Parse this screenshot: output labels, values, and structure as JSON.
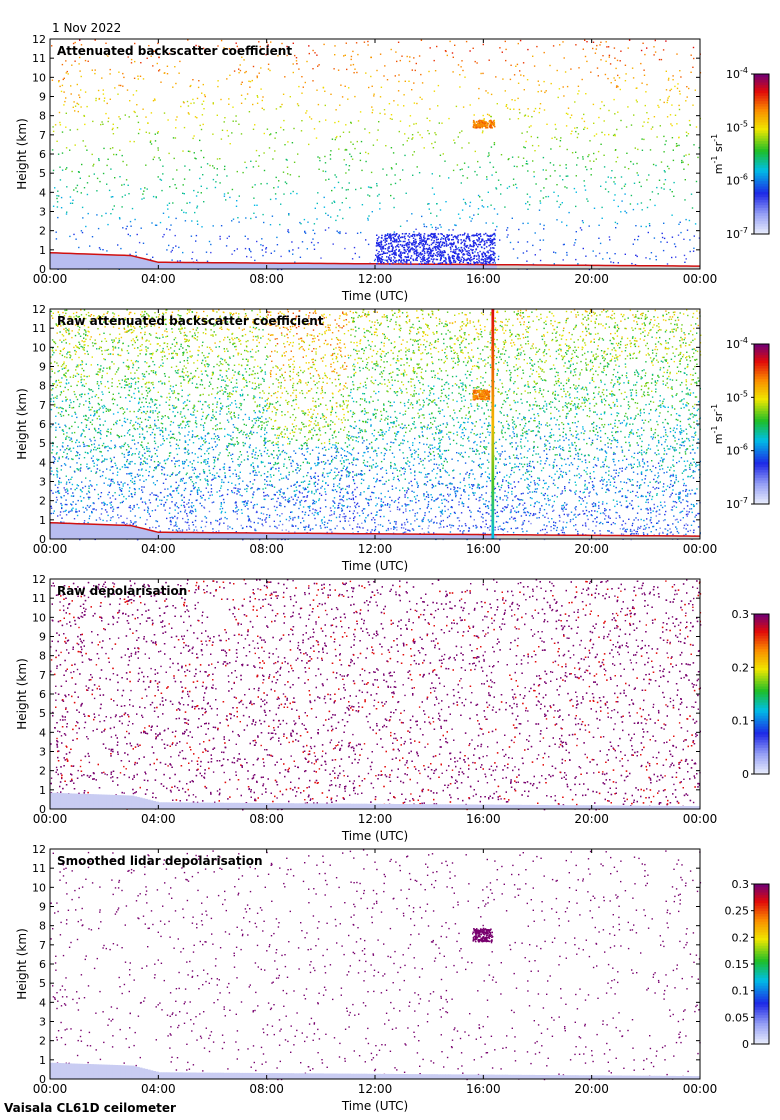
{
  "date": "1 Nov 2022",
  "instrument": "Vaisala CL61D ceilometer",
  "chart_data": [
    {
      "type": "heatmap",
      "title": "Attenuated backscatter coefficient",
      "xlabel": "Time (UTC)",
      "ylabel": "Height (km)",
      "xticks": [
        "00:00",
        "04:00",
        "08:00",
        "12:00",
        "16:00",
        "20:00",
        "00:00"
      ],
      "xlim_hours": [
        0,
        24
      ],
      "ylim": [
        0,
        12
      ],
      "yticks": [
        0,
        1,
        2,
        3,
        4,
        5,
        6,
        7,
        8,
        9,
        10,
        11,
        12
      ],
      "colorbar": {
        "scale": "log",
        "range": [
          1e-07,
          0.0001
        ],
        "ticks": [
          {
            "base": "10",
            "exp": "-7"
          },
          {
            "base": "10",
            "exp": "-6"
          },
          {
            "base": "10",
            "exp": "-5"
          },
          {
            "base": "10",
            "exp": "-4"
          }
        ],
        "units": {
          "a": "m",
          "a_exp": "-1",
          "b": " sr",
          "b_exp": "-1"
        }
      },
      "features": [
        {
          "desc": "boundary layer top",
          "points": [
            [
              0,
              0.8
            ],
            [
              3,
              0.7
            ],
            [
              4,
              0.35
            ],
            [
              12,
              0.25
            ],
            [
              16.4,
              0.25
            ],
            [
              24,
              0.15
            ]
          ]
        },
        {
          "desc": "elevated cloud",
          "time_hours": [
            15.6,
            16.4
          ],
          "height_km": [
            7.4,
            7.8
          ]
        },
        {
          "desc": "dense low aerosol layer",
          "time_hours": [
            12,
            16.4
          ],
          "height_km": [
            0.3,
            1.9
          ]
        }
      ]
    },
    {
      "type": "heatmap",
      "title": "Raw attenuated backscatter coefficient",
      "xlabel": "Time (UTC)",
      "ylabel": "Height (km)",
      "xticks": [
        "00:00",
        "04:00",
        "08:00",
        "12:00",
        "16:00",
        "20:00",
        "00:00"
      ],
      "xlim_hours": [
        0,
        24
      ],
      "ylim": [
        0,
        12
      ],
      "yticks": [
        0,
        1,
        2,
        3,
        4,
        5,
        6,
        7,
        8,
        9,
        10,
        11,
        12
      ],
      "colorbar": {
        "scale": "log",
        "range": [
          1e-07,
          0.0001
        ],
        "ticks": [
          {
            "base": "10",
            "exp": "-7"
          },
          {
            "base": "10",
            "exp": "-6"
          },
          {
            "base": "10",
            "exp": "-5"
          },
          {
            "base": "10",
            "exp": "-4"
          }
        ],
        "units": {
          "a": "m",
          "a_exp": "-1",
          "b": " sr",
          "b_exp": "-1"
        }
      },
      "features": [
        {
          "desc": "vertical stripe",
          "time_hours": [
            16.3,
            16.4
          ],
          "height_km": [
            0,
            12
          ]
        },
        {
          "desc": "elevated cloud",
          "time_hours": [
            15.6,
            16.2
          ],
          "height_km": [
            7.3,
            7.8
          ]
        }
      ]
    },
    {
      "type": "heatmap",
      "title": "Raw depolarisation",
      "xlabel": "Time (UTC)",
      "ylabel": "Height (km)",
      "xticks": [
        "00:00",
        "04:00",
        "08:00",
        "12:00",
        "16:00",
        "20:00",
        "00:00"
      ],
      "xlim_hours": [
        0,
        24
      ],
      "ylim": [
        0,
        12
      ],
      "yticks": [
        0,
        1,
        2,
        3,
        4,
        5,
        6,
        7,
        8,
        9,
        10,
        11,
        12
      ],
      "colorbar": {
        "scale": "linear",
        "range": [
          0,
          0.3
        ],
        "ticks": [
          "0",
          "0.1",
          "0.2",
          "0.3"
        ]
      }
    },
    {
      "type": "heatmap",
      "title": "Smoothed lidar depolarisation",
      "xlabel": "Time (UTC)",
      "ylabel": "Height (km)",
      "xticks": [
        "00:00",
        "04:00",
        "08:00",
        "12:00",
        "16:00",
        "20:00",
        "00:00"
      ],
      "xlim_hours": [
        0,
        24
      ],
      "ylim": [
        0,
        12
      ],
      "yticks": [
        0,
        1,
        2,
        3,
        4,
        5,
        6,
        7,
        8,
        9,
        10,
        11,
        12
      ],
      "colorbar": {
        "scale": "linear",
        "range": [
          0,
          0.3
        ],
        "ticks": [
          "0",
          "0.05",
          "0.1",
          "0.15",
          "0.2",
          "0.25",
          "0.3"
        ]
      },
      "features": [
        {
          "desc": "elevated cloud",
          "time_hours": [
            15.6,
            16.3
          ],
          "height_km": [
            7.2,
            7.9
          ]
        }
      ]
    }
  ]
}
